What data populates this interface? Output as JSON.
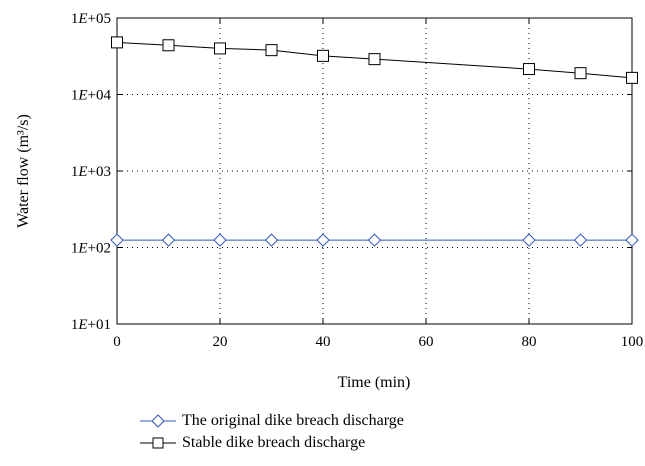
{
  "chart_data": {
    "type": "line",
    "xlabel": "Time (min)",
    "ylabel": "Water flow (m³/s)",
    "yscale": "log",
    "xlim": [
      0,
      100
    ],
    "ylim": [
      10,
      100000
    ],
    "xticks": [
      0,
      20,
      40,
      60,
      80,
      100
    ],
    "yticks": [
      10,
      100,
      1000,
      10000,
      100000
    ],
    "ytick_labels": [
      "1E+01",
      "1E+02",
      "1E+03",
      "1E+04",
      "1E+05"
    ],
    "grid": "dotted",
    "legend_position": "bottom",
    "series": [
      {
        "name": "The original dike breach discharge",
        "color": "#3355bb",
        "marker": "diamond",
        "x": [
          0,
          10,
          20,
          30,
          40,
          50,
          80,
          90,
          100
        ],
        "y": [
          125,
          125,
          125,
          125,
          125,
          125,
          125,
          125,
          125
        ]
      },
      {
        "name": "Stable dike breach discharge",
        "color": "#000000",
        "marker": "square",
        "x": [
          0,
          10,
          20,
          30,
          40,
          50,
          80,
          90,
          100
        ],
        "y": [
          48000,
          44000,
          40000,
          38000,
          32000,
          29000,
          21500,
          19000,
          16500
        ]
      }
    ]
  }
}
